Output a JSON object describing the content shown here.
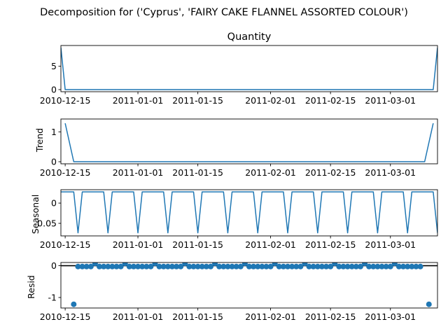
{
  "title": "Decomposition for ('Cyprus', 'FAIRY CAKE FLANNEL ASSORTED COLOUR')",
  "colors": {
    "line": "#1f77b4",
    "axis": "#000000",
    "background": "#ffffff"
  },
  "chart_data": [
    {
      "type": "line",
      "title": "Quantity",
      "ylabel": "",
      "ylim": [
        -0.45,
        9.45
      ],
      "yticks": [
        0,
        5
      ],
      "x_range": [
        "2010-12-14",
        "2011-03-12"
      ],
      "xticks": [
        "2010-12-15",
        "2011-01-01",
        "2011-01-15",
        "2011-02-01",
        "2011-02-15",
        "2011-03-01"
      ],
      "points": [
        [
          "2010-12-14",
          9
        ],
        [
          "2010-12-15",
          0
        ],
        [
          "2011-03-11",
          0
        ],
        [
          "2011-03-12",
          9
        ]
      ]
    },
    {
      "type": "line",
      "title": "",
      "ylabel": "Trend",
      "ylim": [
        -0.07,
        1.43
      ],
      "yticks": [
        0,
        1
      ],
      "x_range": [
        "2010-12-14",
        "2011-03-12"
      ],
      "xticks": [
        "2010-12-15",
        "2011-01-01",
        "2011-01-15",
        "2011-02-01",
        "2011-02-15",
        "2011-03-01"
      ],
      "points": [
        [
          "2010-12-15",
          1.286
        ],
        [
          "2010-12-17",
          0
        ],
        [
          "2011-03-09",
          0
        ],
        [
          "2011-03-11",
          1.286
        ]
      ]
    },
    {
      "type": "line",
      "title": "",
      "ylabel": "Seasonal",
      "ylim": [
        -0.081,
        0.033
      ],
      "yticks": [
        0.0,
        -0.05
      ],
      "x_range": [
        "2010-12-14",
        "2011-03-12"
      ],
      "xticks": [
        "2010-12-15",
        "2011-01-01",
        "2011-01-15",
        "2011-02-01",
        "2011-02-15",
        "2011-03-01"
      ],
      "period": 7,
      "cycle_values": [
        0.0275,
        0.0275,
        0.0275,
        0.0275,
        -0.0735,
        0.0275,
        0.0275
      ]
    },
    {
      "type": "scatter",
      "title": "",
      "ylabel": "Resid",
      "ylim": [
        -1.33,
        0.1
      ],
      "yticks": [
        0,
        -1
      ],
      "reference_line": 0,
      "x_range": [
        "2010-12-14",
        "2011-03-12"
      ],
      "xticks": [
        "2010-12-15",
        "2011-01-01",
        "2011-01-15",
        "2011-02-01",
        "2011-02-15",
        "2011-03-01"
      ],
      "range": [
        "2010-12-18",
        "2011-03-08"
      ],
      "period": 7,
      "cycle_values": [
        -0.0275,
        -0.0275,
        -0.0275,
        -0.0275,
        0.0735,
        -0.0275,
        -0.0275
      ],
      "extra_points": [
        [
          "2010-12-17",
          -1.214
        ],
        [
          "2011-03-10",
          -1.214
        ]
      ]
    }
  ]
}
